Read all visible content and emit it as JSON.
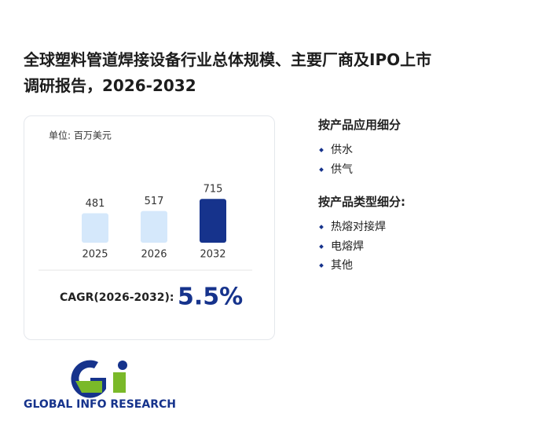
{
  "header": {
    "title_line1": "全球塑料管道焊接设备行业总体规模、主要厂商及IPO上市",
    "title_line2": "调研报告，2026-2032"
  },
  "chart_data": {
    "type": "bar",
    "unit": "单位: 百万美元",
    "categories": [
      "2025",
      "2026",
      "2032"
    ],
    "values": [
      481,
      517,
      715
    ],
    "colors": [
      "#d5e8fb",
      "#d5e8fb",
      "#16338c"
    ]
  },
  "cagr": {
    "label": "CAGR(2026-2032):",
    "value": "5.5%"
  },
  "segments": [
    {
      "heading": "按产品应用细分",
      "items": [
        "供水",
        "供气"
      ]
    },
    {
      "heading": "按产品类型细分:",
      "items": [
        "热熔对接焊",
        "电熔焊",
        "其他"
      ]
    }
  ],
  "logo": {
    "text": "GLOBAL INFO RESEARCH"
  }
}
